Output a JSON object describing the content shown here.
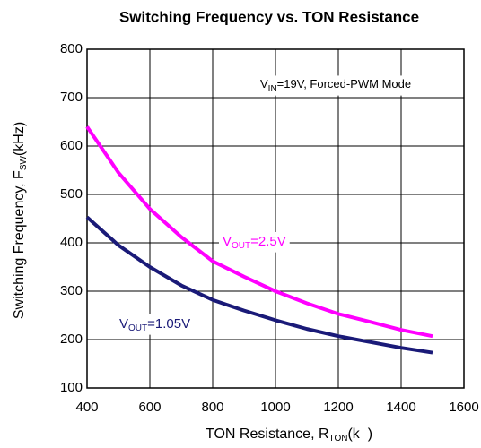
{
  "chart_data": {
    "type": "line",
    "title": "Switching Frequency vs. TON Resistance",
    "x_label": {
      "main": "TON Resistance, R",
      "sub": "TON",
      "rest": "(k  )"
    },
    "y_label": {
      "main": "Switching Frequency, F",
      "sub": "SW",
      "rest": "(kHz)"
    },
    "annotation": {
      "main": "V",
      "sub": "IN",
      "rest": "=19V, Forced-PWM Mode"
    },
    "x": [
      400,
      500,
      600,
      700,
      800,
      900,
      1000,
      1100,
      1200,
      1300,
      1400,
      1500
    ],
    "series": [
      {
        "label": {
          "main": "V",
          "sub": "OUT",
          "rest": "=2.5V"
        },
        "color": "#ff00ff",
        "values": [
          640,
          545,
          470,
          412,
          362,
          330,
          300,
          275,
          253,
          237,
          220,
          207
        ]
      },
      {
        "label": {
          "main": "V",
          "sub": "OUT",
          "rest": "=1.05V"
        },
        "color": "#1a1a78",
        "values": [
          453,
          395,
          350,
          312,
          282,
          260,
          240,
          222,
          207,
          195,
          183,
          173
        ]
      }
    ],
    "xlim": [
      400,
      1600
    ],
    "xticks": [
      400,
      600,
      800,
      1000,
      1200,
      1400,
      1600
    ],
    "ylim": [
      100,
      800
    ],
    "yticks": [
      100,
      200,
      300,
      400,
      500,
      600,
      700,
      800
    ],
    "grid": true
  }
}
